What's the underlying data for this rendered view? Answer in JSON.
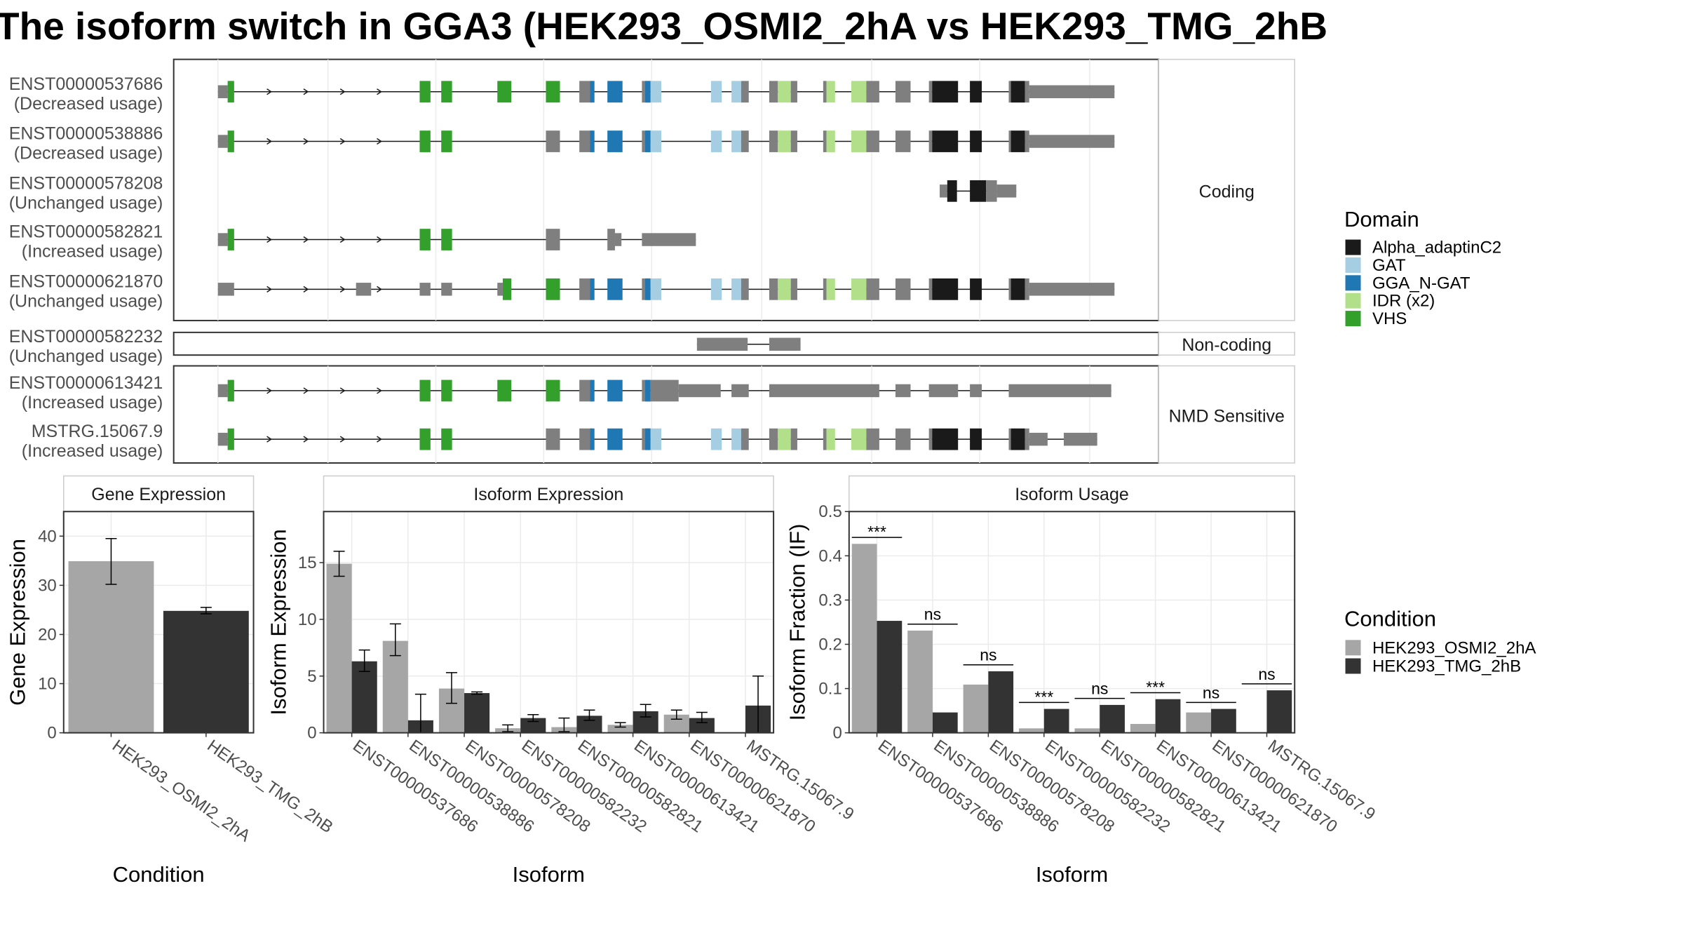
{
  "title": "The isoform switch in GGA3 (HEK293_OSMI2_2hA vs HEK293_TMG_2hB",
  "colors": {
    "cond_a": "#a6a6a6",
    "cond_b": "#333333",
    "exon": "#7f7f7f",
    "Alpha_adaptinC2": "#1a1a1a",
    "GAT": "#a6cee3",
    "GGA_N-GAT": "#1f78b4",
    "IDR (x2)": "#b2df8a",
    "VHS": "#33a02c"
  },
  "structure": {
    "categories": [
      "Coding",
      "Non-coding",
      "NMD Sensitive"
    ],
    "transcripts": [
      {
        "id": "ENST00000537686",
        "usage": "(Decreased usage)",
        "group": "Coding",
        "style": "full"
      },
      {
        "id": "ENST00000538886",
        "usage": "(Decreased usage)",
        "group": "Coding",
        "style": "full_b"
      },
      {
        "id": "ENST00000578208",
        "usage": "(Unchanged usage)",
        "group": "Coding",
        "style": "short3"
      },
      {
        "id": "ENST00000582821",
        "usage": "(Increased usage)",
        "group": "Coding",
        "style": "trunc"
      },
      {
        "id": "ENST00000621870",
        "usage": "(Unchanged usage)",
        "group": "Coding",
        "style": "alt5"
      },
      {
        "id": "ENST00000582232",
        "usage": "(Unchanged usage)",
        "group": "Non-coding",
        "style": "nc"
      },
      {
        "id": "ENST00000613421",
        "usage": "(Increased usage)",
        "group": "NMD Sensitive",
        "style": "nmd1"
      },
      {
        "id": "MSTRG.15067.9",
        "usage": "(Increased usage)",
        "group": "NMD Sensitive",
        "style": "nmd2"
      }
    ]
  },
  "legends": {
    "domain": {
      "title": "Domain",
      "items": [
        "Alpha_adaptinC2",
        "GAT",
        "GGA_N-GAT",
        "IDR (x2)",
        "VHS"
      ]
    },
    "condition": {
      "title": "Condition",
      "items": [
        "HEK293_OSMI2_2hA",
        "HEK293_TMG_2hB"
      ]
    }
  },
  "chart_data": [
    {
      "type": "bar",
      "title": "Gene Expression",
      "xlabel": "Condition",
      "ylabel": "Gene Expression",
      "ylim": [
        0,
        45
      ],
      "yticks": [
        0,
        10,
        20,
        30,
        40
      ],
      "categories": [
        "HEK293_OSMI2_2hA",
        "HEK293_TMG_2hB"
      ],
      "values": [
        34.9,
        24.8
      ],
      "errors": [
        [
          30.2,
          39.5
        ],
        [
          24.2,
          25.5
        ]
      ]
    },
    {
      "type": "bar",
      "title": "Isoform Expression",
      "xlabel": "Isoform",
      "ylabel": "Isoform Expression",
      "ylim": [
        0,
        19.5
      ],
      "yticks": [
        0,
        5,
        10,
        15
      ],
      "categories": [
        "ENST00000537686",
        "ENST00000538886",
        "ENST00000578208",
        "ENST00000582232",
        "ENST00000582821",
        "ENST00000613421",
        "ENST00000621870",
        "MSTRG.15067.9"
      ],
      "series": [
        {
          "name": "HEK293_OSMI2_2hA",
          "values": [
            14.9,
            8.1,
            3.9,
            0.4,
            0.5,
            0.7,
            1.6,
            0.0
          ],
          "errors": [
            [
              13.8,
              16.0
            ],
            [
              6.8,
              9.6
            ],
            [
              2.6,
              5.3
            ],
            [
              0.1,
              0.7
            ],
            [
              0.1,
              1.3
            ],
            [
              0.5,
              0.9
            ],
            [
              1.2,
              2.0
            ],
            [
              0.0,
              0.0
            ]
          ]
        },
        {
          "name": "HEK293_TMG_2hB",
          "values": [
            6.3,
            1.1,
            3.5,
            1.3,
            1.5,
            1.9,
            1.3,
            2.4
          ],
          "errors": [
            [
              5.4,
              7.3
            ],
            [
              0.0,
              3.4
            ],
            [
              3.4,
              3.6
            ],
            [
              1.0,
              1.6
            ],
            [
              1.1,
              2.0
            ],
            [
              1.4,
              2.5
            ],
            [
              0.9,
              1.8
            ],
            [
              0.0,
              5.0
            ]
          ]
        }
      ]
    },
    {
      "type": "bar",
      "title": "Isoform Usage",
      "xlabel": "Isoform",
      "ylabel": "Isoform Fraction (IF)",
      "ylim": [
        0,
        0.5
      ],
      "yticks": [
        0.0,
        0.1,
        0.2,
        0.3,
        0.4,
        0.5
      ],
      "categories": [
        "ENST00000537686",
        "ENST00000538886",
        "ENST00000578208",
        "ENST00000582232",
        "ENST00000582821",
        "ENST00000613421",
        "ENST00000621870",
        "MSTRG.15067.9"
      ],
      "series": [
        {
          "name": "HEK293_OSMI2_2hA",
          "values": [
            0.427,
            0.231,
            0.109,
            0.01,
            0.01,
            0.02,
            0.046,
            0.0
          ]
        },
        {
          "name": "HEK293_TMG_2hB",
          "values": [
            0.253,
            0.046,
            0.139,
            0.054,
            0.063,
            0.076,
            0.054,
            0.096
          ]
        }
      ],
      "significance": [
        "***",
        "ns",
        "ns",
        "***",
        "ns",
        "***",
        "ns",
        "ns"
      ]
    }
  ]
}
